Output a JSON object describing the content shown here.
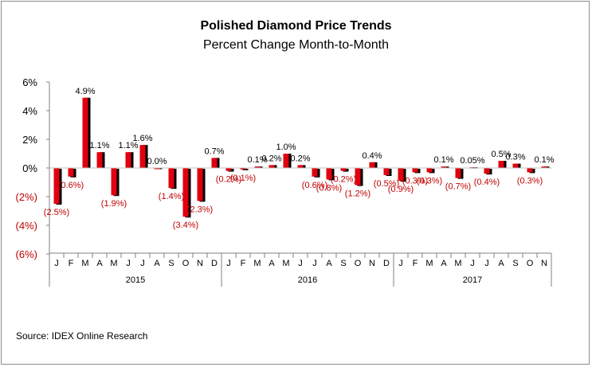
{
  "colors": {
    "bar_front": "#e0000f",
    "bar_shadow": "#000000",
    "negative_label": "#c00000",
    "positive_label": "#000000",
    "axis": "#808080"
  },
  "source": "Source: IDEX Online Research",
  "chart_data": {
    "type": "bar",
    "title": "Polished Diamond Price Trends",
    "subtitle": "Percent Change Month-to-Month",
    "ylim": [
      -6,
      6
    ],
    "y_ticks": [
      6,
      4,
      2,
      0,
      -2,
      -4,
      -6
    ],
    "y_tick_labels": [
      "6%",
      "4%",
      "2%",
      "0%",
      "(2%)",
      "(4%)",
      "(6%)"
    ],
    "grid": false,
    "categories": [
      "J",
      "F",
      "M",
      "A",
      "M",
      "J",
      "J",
      "A",
      "S",
      "O",
      "N",
      "D",
      "J",
      "F",
      "M",
      "A",
      "M",
      "J",
      "J",
      "A",
      "S",
      "O",
      "N",
      "D",
      "J",
      "F",
      "M",
      "A",
      "M",
      "J",
      "J",
      "A",
      "S",
      "O",
      "N"
    ],
    "years": [
      "2015",
      "2016",
      "2017"
    ],
    "values": [
      -2.5,
      -0.6,
      4.9,
      1.1,
      -1.9,
      1.1,
      1.6,
      0.0,
      -1.4,
      -3.4,
      -2.3,
      0.7,
      -0.2,
      -0.1,
      0.1,
      0.2,
      1.0,
      0.2,
      -0.6,
      -0.8,
      -0.2,
      -1.2,
      0.4,
      -0.5,
      -0.9,
      -0.3,
      -0.3,
      0.1,
      -0.7,
      0.05,
      -0.4,
      0.5,
      0.3,
      -0.3,
      0.1
    ],
    "data_labels": [
      "(2.5%)",
      "(0.6%)",
      "4.9%",
      "1.1%",
      "(1.9%)",
      "1.1%",
      "1.6%",
      "0.0%",
      "(1.4%)",
      "(3.4%)",
      "(2.3%)",
      "0.7%",
      "(0.2%)",
      "(0.1%)",
      "0.1%",
      "0.2%",
      "1.0%",
      "0.2%",
      "(0.6%)",
      "(0.8%)",
      "(0.2%)",
      "(1.2%)",
      "0.4%",
      "(0.5%)",
      "(0.9%)",
      "(0.3%)",
      "(0.3%)",
      "0.1%",
      "(0.7%)",
      "0.05%",
      "(0.4%)",
      "0.5%",
      "0.3%",
      "(0.3%)",
      "0.1%"
    ]
  }
}
